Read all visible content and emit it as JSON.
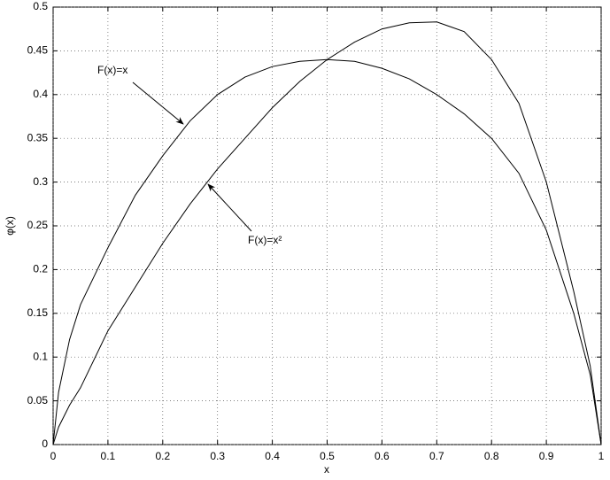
{
  "chart_data": {
    "type": "line",
    "xlabel": "x",
    "ylabel": "φ(x)",
    "x": [
      0,
      0.01,
      0.03,
      0.05,
      0.1,
      0.15,
      0.2,
      0.25,
      0.3,
      0.35,
      0.4,
      0.45,
      0.5,
      0.55,
      0.6,
      0.65,
      0.7,
      0.75,
      0.8,
      0.85,
      0.9,
      0.95,
      0.98,
      1
    ],
    "series": [
      {
        "name": "F(x)=x",
        "color": "#000000",
        "values": [
          0,
          0.06,
          0.12,
          0.16,
          0.225,
          0.285,
          0.33,
          0.37,
          0.4,
          0.42,
          0.432,
          0.438,
          0.44,
          0.438,
          0.43,
          0.418,
          0.4,
          0.378,
          0.35,
          0.31,
          0.245,
          0.15,
          0.08,
          0
        ]
      },
      {
        "name": "F(x)=x²",
        "color": "#000000",
        "values": [
          0,
          0.02,
          0.045,
          0.065,
          0.13,
          0.18,
          0.23,
          0.275,
          0.315,
          0.35,
          0.385,
          0.415,
          0.44,
          0.46,
          0.475,
          0.482,
          0.483,
          0.472,
          0.44,
          0.39,
          0.3,
          0.175,
          0.09,
          0
        ]
      }
    ],
    "xlim": [
      0,
      1
    ],
    "xticks": [
      0,
      0.1,
      0.2,
      0.3,
      0.4,
      0.5,
      0.6,
      0.7,
      0.8,
      0.9,
      1
    ],
    "ylim": [
      0,
      0.5
    ],
    "yticks": [
      0,
      0.05,
      0.1,
      0.15,
      0.2,
      0.25,
      0.3,
      0.35,
      0.4,
      0.45,
      0.5
    ],
    "grid": true
  }
}
